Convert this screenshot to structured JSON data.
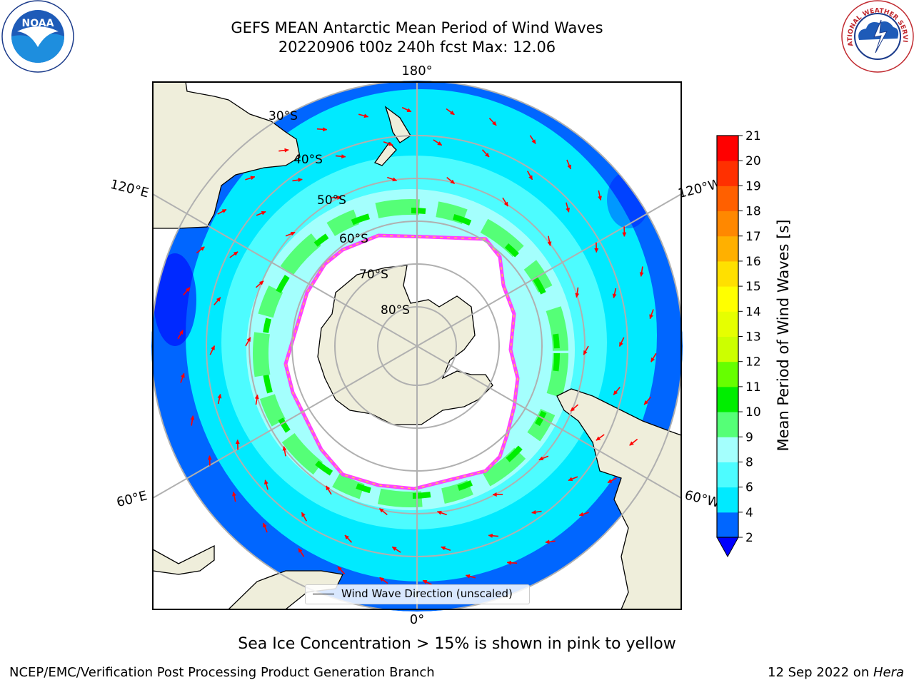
{
  "title": {
    "line1": "GEFS MEAN Antarctic Mean Period of Wind Waves",
    "line2": "20220906 t00z 240h fcst   Max: 12.06"
  },
  "logos": {
    "noaa": "NOAA",
    "nws": "NATIONAL WEATHER SERVICE"
  },
  "map": {
    "longitude_labels": {
      "top": "180°",
      "bottom": "0°",
      "left_upper": "120°E",
      "left_lower": "60°E",
      "right_upper": "120°W",
      "right_lower": "60°W"
    },
    "latitude_labels": [
      "30°S",
      "40°S",
      "50°S",
      "60°S",
      "70°S",
      "80°S"
    ],
    "legend": "Wind Wave Direction (unscaled)",
    "colors": {
      "ocean_deep_blue": "#0066ff",
      "ocean_cyan": "#00eaff",
      "ocean_light_cyan": "#4dfcff",
      "ocean_pale": "#a4fffd",
      "green_light": "#55ff77",
      "green": "#00ee00",
      "land": "#efeedb",
      "sea_ice_edge": "#ff44ff",
      "arrows": "#ff0000"
    }
  },
  "colorbar": {
    "title": "Mean Period of Wind Waves [s]",
    "ticks": [
      "2",
      "4",
      "6",
      "8",
      "9",
      "10",
      "11",
      "12",
      "13",
      "14",
      "15",
      "16",
      "17",
      "18",
      "19",
      "20",
      "21"
    ],
    "colors": [
      "#0066ff",
      "#00eaff",
      "#4dfcff",
      "#a4fffd",
      "#55ff77",
      "#00ee00",
      "#66ff00",
      "#ccff00",
      "#e6ff00",
      "#ffff00",
      "#ffe000",
      "#ffb000",
      "#ff8800",
      "#ff6000",
      "#ff3000",
      "#ff0000"
    ],
    "under_color": "#0000ff"
  },
  "caption": "Sea Ice Concentration > 15% is shown in pink to yellow",
  "footer": {
    "left": "NCEP/EMC/Verification Post Processing Product Generation Branch",
    "right_text": "12 Sep 2022 on ",
    "right_host": "Hera"
  }
}
